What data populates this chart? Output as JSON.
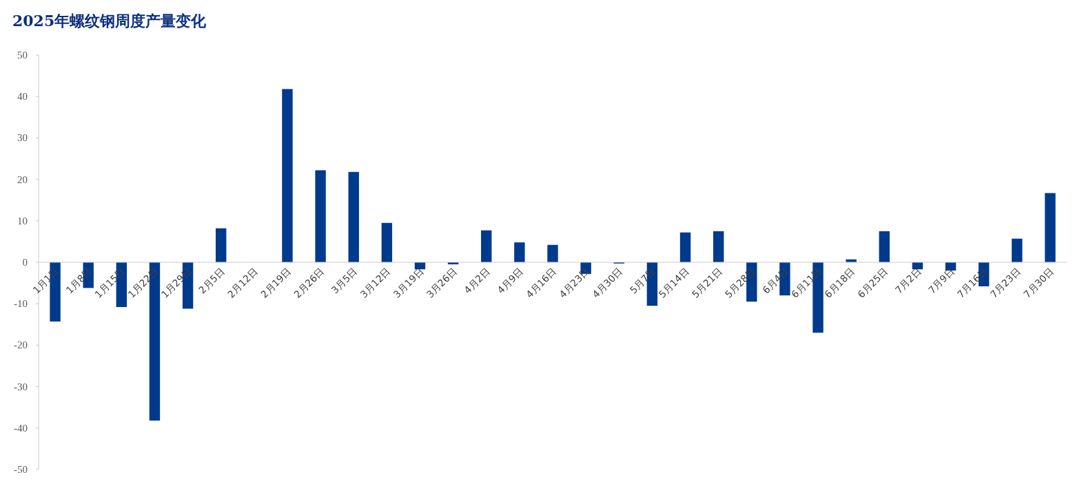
{
  "chart_data": {
    "type": "bar",
    "title": "2025年螺纹钢周度产量变化",
    "categories": [
      "1月1日",
      "1月8日",
      "1月15日",
      "1月22日",
      "1月29日",
      "2月5日",
      "2月12日",
      "2月19日",
      "2月26日",
      "3月5日",
      "3月12日",
      "3月19日",
      "3月26日",
      "4月2日",
      "4月9日",
      "4月16日",
      "4月23日",
      "4月30日",
      "5月7日",
      "5月14日",
      "5月21日",
      "5月28日",
      "6月4日",
      "6月11日",
      "6月18日",
      "6月25日",
      "7月2日",
      "7月9日",
      "7月16日",
      "7月23日",
      "7月30日"
    ],
    "values": [
      -14.3,
      -6.2,
      -10.8,
      -38.2,
      -11.2,
      8.2,
      0,
      41.8,
      22.2,
      21.8,
      9.5,
      -1.7,
      -0.5,
      7.7,
      4.8,
      4.2,
      -2.8,
      -0.3,
      -10.5,
      7.2,
      7.5,
      -9.5,
      -8,
      -17,
      0.7,
      7.5,
      -1.7,
      -2,
      -5.8,
      5.7,
      16.7
    ],
    "color": "#003a8c",
    "ylim": [
      -50,
      50
    ],
    "yticks": [
      -50,
      -40,
      -30,
      -20,
      -10,
      0,
      10,
      20,
      30,
      40,
      50
    ],
    "grid": false
  }
}
